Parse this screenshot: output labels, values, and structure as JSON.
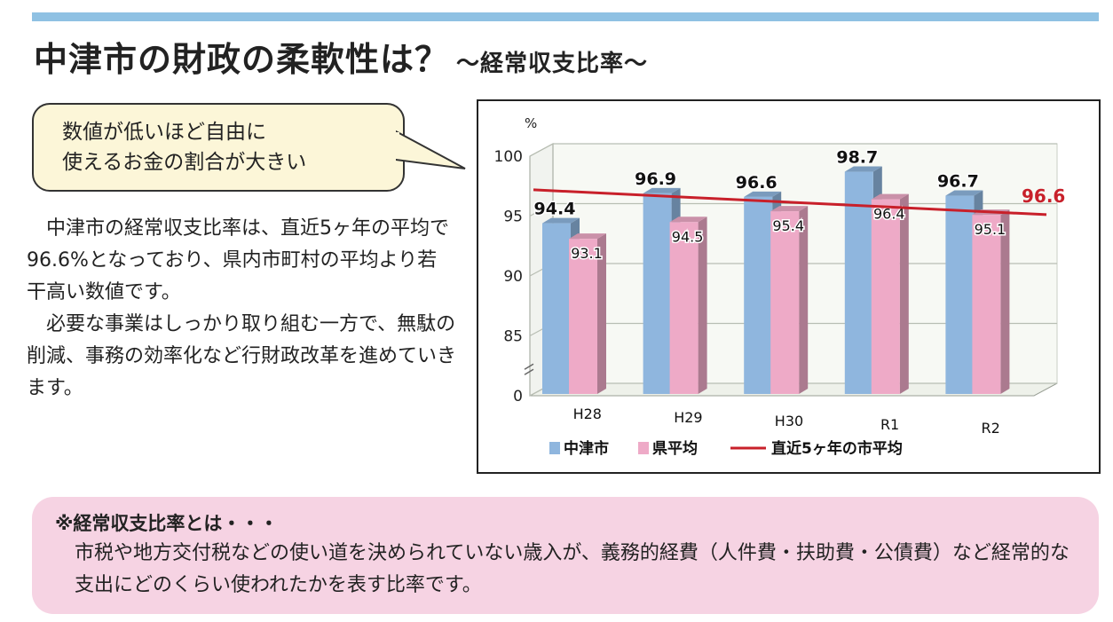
{
  "title": "中津市の財政の柔軟性は？",
  "subtitle": "〜経常収支比率〜",
  "bubble": {
    "line1": "数値が低いほど自由に",
    "line2": "使えるお金の割合が大きい"
  },
  "body": {
    "p1": "中津市の経常収支比率は、直近5ヶ年の平均で96.6%となっており、県内市町村の平均より若干高い数値です。",
    "p2": "必要な事業はしっかり取り組む一方で、無駄の削減、事務の効率化など行財政改革を進めていきます。"
  },
  "note": {
    "title": "※経常収支比率とは・・・",
    "body": "市税や地方交付税などの使い道を決められていない歳入が、義務的経費（人件費・扶助費・公債費）など経常的な支出にどのくらい使われたかを表す比率です。"
  },
  "chart_data": {
    "type": "bar",
    "unit": "%",
    "categories": [
      "H28",
      "H29",
      "H30",
      "R1",
      "R2"
    ],
    "series": [
      {
        "name": "中津市",
        "values": [
          94.4,
          96.9,
          96.6,
          98.7,
          96.7
        ],
        "color": "#8fb6de"
      },
      {
        "name": "県平均",
        "values": [
          93.1,
          94.5,
          95.4,
          96.4,
          95.1
        ],
        "color": "#eeaac7"
      }
    ],
    "average_line": {
      "name": "直近5ヶ年の市平均",
      "value": 96.6,
      "color": "#c8202a"
    },
    "y_ticks": [
      "0",
      "85",
      "90",
      "95",
      "100"
    ],
    "y_tick_values": [
      80,
      85,
      90,
      95,
      100
    ],
    "ylim": [
      80,
      100
    ],
    "axis_break": true,
    "legend": "bottom",
    "grid": true
  }
}
